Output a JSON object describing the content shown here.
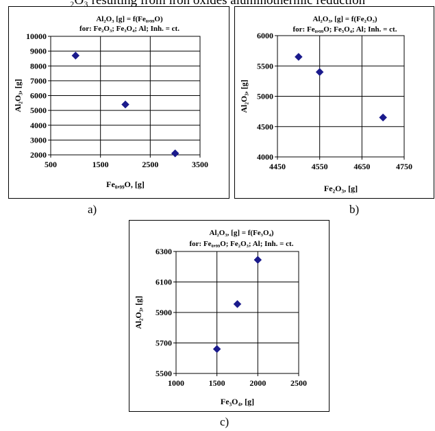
{
  "page": {
    "cut_text": "₂O₃ resulting from iron oxides aluminothermic reduction"
  },
  "captions": {
    "a": "a)",
    "b": "b)",
    "c": "c)"
  },
  "chart_data": [
    {
      "type": "scatter",
      "title_line1": "Al₂O₃ [g] = f(Fe₀,₉₉O)",
      "title_line2": "for: Fe₂O₃; Fe₃O₄; Al; Inh. = ct.",
      "xlabel": "Fe₀,₉₉O, [g]",
      "ylabel": "Al₂O₃, [g]",
      "xlim": [
        500,
        3500
      ],
      "ylim": [
        2000,
        10000
      ],
      "x_ticks": [
        500,
        1500,
        2500,
        3500
      ],
      "y_ticks": [
        2000,
        3000,
        4000,
        5000,
        6000,
        7000,
        8000,
        9000,
        10000
      ],
      "x_tick_labels": [
        "500",
        "1500",
        "2500",
        "3500"
      ],
      "y_tick_labels": [
        "2000",
        "3000",
        "4000",
        "5000",
        "6000",
        "7000",
        "8000",
        "9000",
        "10000"
      ],
      "grid": true,
      "marker_color": "#1a1a8c",
      "marker": "diamond",
      "points": [
        {
          "x": 1000,
          "y": 8700
        },
        {
          "x": 2000,
          "y": 5400
        },
        {
          "x": 3000,
          "y": 2100
        }
      ]
    },
    {
      "type": "scatter",
      "title_line1": "Al₂O₃, [g] = f(Fe₂O₃)",
      "title_line2": "for: Fe₀,₉₉O; Fe₃O₄; Al; Inh. = ct.",
      "xlabel": "Fe₂O₃, [g]",
      "ylabel": "Al₂O₃, [g]",
      "xlim": [
        4450,
        4750
      ],
      "ylim": [
        4000,
        6000
      ],
      "x_ticks": [
        4450,
        4550,
        4650,
        4750
      ],
      "y_ticks": [
        4000,
        4500,
        5000,
        5500,
        6000
      ],
      "x_tick_labels": [
        "4450",
        "4550",
        "4650",
        "4750"
      ],
      "y_tick_labels": [
        "4000",
        "4500",
        "5000",
        "5500",
        "6000"
      ],
      "grid": true,
      "marker_color": "#1a1a8c",
      "marker": "diamond",
      "points": [
        {
          "x": 4500,
          "y": 5650
        },
        {
          "x": 4550,
          "y": 5400
        },
        {
          "x": 4700,
          "y": 4650
        }
      ]
    },
    {
      "type": "scatter",
      "title_line1": "Al₂O₃, [g] = f(Fe₃O₄)",
      "title_line2": "for: Fe₀,₉₉O; Fe₂O₃; Al; Inh. = ct.",
      "xlabel": "Fe₃O₄, [g]",
      "ylabel": "Al₂O₃, [g]",
      "xlim": [
        1000,
        2500
      ],
      "ylim": [
        5500,
        6300
      ],
      "x_ticks": [
        1000,
        1500,
        2000,
        2500
      ],
      "y_ticks": [
        5500,
        5700,
        5900,
        6100,
        6300
      ],
      "x_tick_labels": [
        "1000",
        "1500",
        "2000",
        "2500"
      ],
      "y_tick_labels": [
        "5500",
        "5700",
        "5900",
        "6100",
        "6300"
      ],
      "grid": true,
      "marker_color": "#1a1a8c",
      "marker": "diamond",
      "points": [
        {
          "x": 1500,
          "y": 5660
        },
        {
          "x": 1750,
          "y": 5955
        },
        {
          "x": 2000,
          "y": 6245
        }
      ]
    }
  ]
}
